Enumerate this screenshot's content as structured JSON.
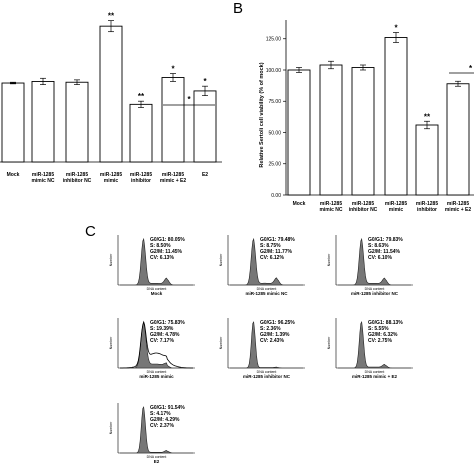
{
  "panel_labels": [
    "B",
    "C"
  ],
  "chart_data": [
    {
      "type": "bar",
      "panel": "A",
      "categories": [
        "Mock",
        "miR-1285 mimic NC",
        "miR-1285 inhibitor NC",
        "miR-1285 mimic",
        "miR-1285 inhibitor",
        "miR-1285 mimic + E2",
        "E2"
      ],
      "category_lines": [
        [
          "Mock"
        ],
        [
          "miR-1285",
          "mimic NC"
        ],
        [
          "miR-1285",
          "inhibitor NC"
        ],
        [
          "miR-1285",
          "mimic"
        ],
        [
          "miR-1285",
          "inhibitor"
        ],
        [
          "miR-1285",
          "mimic + E2"
        ],
        [
          "E2"
        ]
      ],
      "values": [
        100,
        102,
        101,
        172,
        73,
        107,
        90
      ],
      "errors": [
        1,
        4,
        3,
        7,
        4,
        5,
        6
      ],
      "significance": [
        "",
        "",
        "",
        "**",
        "**",
        "*",
        "*"
      ],
      "bracket": {
        "from": 5,
        "to": 6,
        "label": "*"
      },
      "ylim": [
        0,
        195
      ]
    },
    {
      "type": "bar",
      "panel": "B",
      "ylabel": "Relative Sertoli cell viability (% of mock)",
      "yticks": [
        "0.00",
        "25.00",
        "50.00",
        "75.00",
        "100.00",
        "125.00"
      ],
      "ylim": [
        0,
        140
      ],
      "categories": [
        "Mock",
        "miR-1285 mimic NC",
        "miR-1285 inhibitor NC",
        "miR-1285 mimic",
        "miR-1285 inhibitor",
        "miR-1285 mimic + E2"
      ],
      "category_lines": [
        [
          "Mock"
        ],
        [
          "miR-1285",
          "mimic NC"
        ],
        [
          "miR-1285",
          "inhibitor NC"
        ],
        [
          "miR-1285",
          "mimic"
        ],
        [
          "miR-1285",
          "inhibitor"
        ],
        [
          "miR-1285",
          "mimic + E2"
        ]
      ],
      "values": [
        100,
        104,
        102,
        126,
        56,
        89
      ],
      "errors": [
        2,
        3,
        2,
        4,
        3,
        2
      ],
      "significance": [
        "",
        "",
        "",
        "*",
        "**",
        ""
      ],
      "bracket_label": "*"
    },
    {
      "type": "area",
      "panel": "C",
      "axis_x_label": "DNA content",
      "axis_y_label": "Number",
      "histograms": [
        {
          "name": "Mock",
          "stats": [
            "G0/G1: 80.05%",
            "S: 8.50%",
            "G2/M: 11.45%",
            "CV: 6.13%"
          ],
          "g1": 0.801,
          "s": 0.085,
          "g2m": 0.114,
          "overlay": false
        },
        {
          "name": "miR-1285 mimic NC",
          "stats": [
            "G0/G1: 79.48%",
            "S: 8.75%",
            "G2/M: 11.77%",
            "CV: 6.12%"
          ],
          "g1": 0.795,
          "s": 0.088,
          "g2m": 0.118,
          "overlay": false
        },
        {
          "name": "miR-1285 inhibitor NC",
          "stats": [
            "G0/G1: 79.83%",
            "S: 8.63%",
            "G2/M: 11.54%",
            "CV: 6.10%"
          ],
          "g1": 0.798,
          "s": 0.086,
          "g2m": 0.115,
          "overlay": false
        },
        {
          "name": "miR-1285 mimic",
          "stats": [
            "G0/G1: 75.83%",
            "S: 19.39%",
            "G2/M: 4.78%",
            "CV: 7.17%"
          ],
          "g1": 0.758,
          "s": 0.194,
          "g2m": 0.048,
          "overlay": true
        },
        {
          "name": "miR-1285 inhibitor NC",
          "stats": [
            "G0/G1: 96.25%",
            "S: 2.36%",
            "G2/M: 1.39%",
            "CV: 2.43%"
          ],
          "g1": 0.963,
          "s": 0.024,
          "g2m": 0.014,
          "overlay": false
        },
        {
          "name": "miR-1285 mimic + E2",
          "stats": [
            "G0/G1: 88.13%",
            "S: 5.55%",
            "G2/M: 6.32%",
            "CV: 2.75%"
          ],
          "g1": 0.881,
          "s": 0.056,
          "g2m": 0.063,
          "overlay": false
        },
        {
          "name": "E2",
          "stats": [
            "G0/G1: 91.54%",
            "S: 4.17%",
            "G2/M: 4.29%",
            "CV: 2.37%"
          ],
          "g1": 0.915,
          "s": 0.042,
          "g2m": 0.043,
          "overlay": false
        }
      ]
    }
  ]
}
